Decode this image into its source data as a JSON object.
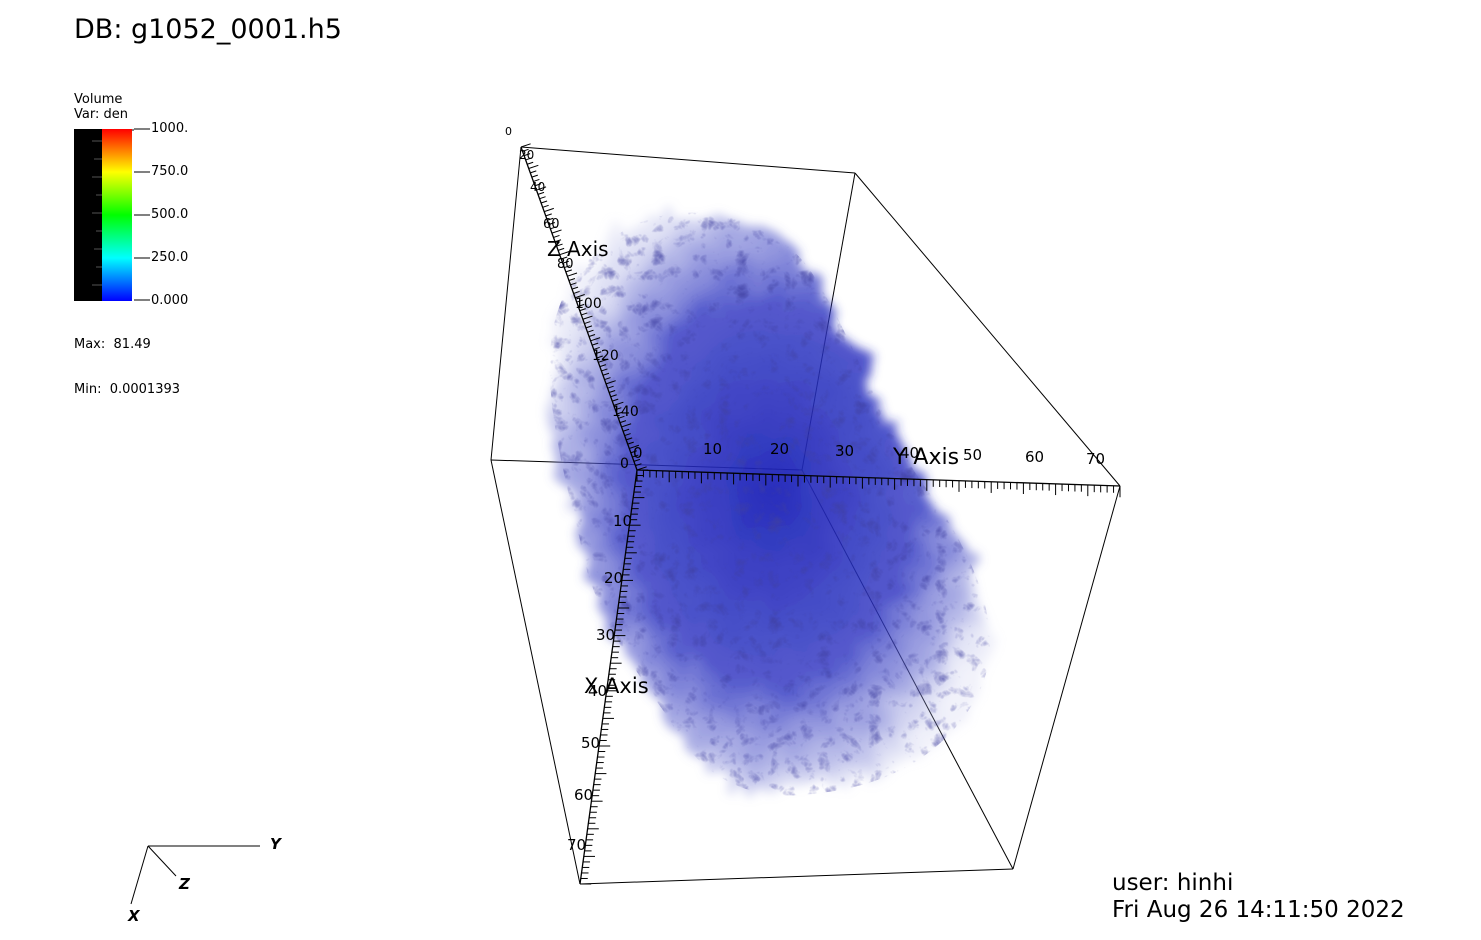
{
  "database": {
    "title": "DB: g1052_0001.h5"
  },
  "legend": {
    "plot_type": "Volume",
    "variable": "Var: den",
    "tick_labels": [
      "1000.",
      "750.0",
      "500.0",
      "250.0",
      "0.000"
    ],
    "max_text": "Max:  81.49",
    "min_text": "Min:  0.0001393",
    "colormap": [
      "#ff0000",
      "#ffff00",
      "#00ff00",
      "#00ffff",
      "#0000ff"
    ],
    "opacity_ramp_color": "#000000"
  },
  "axes": {
    "x": {
      "title": "X Axis",
      "ticks": [
        "0",
        "10",
        "20",
        "30",
        "40",
        "50",
        "60",
        "70"
      ]
    },
    "y": {
      "title": "Y Axis",
      "ticks": [
        "0",
        "10",
        "20",
        "30",
        "40",
        "50",
        "60",
        "70"
      ]
    },
    "z": {
      "title": "Z Axis",
      "ticks": [
        "0",
        "20",
        "40",
        "60",
        "80",
        "100",
        "120",
        "140"
      ]
    },
    "box_origin_label": "0"
  },
  "triad": {
    "x": "X",
    "y": "Y",
    "z": "Z"
  },
  "user": {
    "name": "user: hinhi",
    "datetime": "Fri Aug 26 14:11:50 2022"
  },
  "volume": {
    "color": "#1c22b8"
  }
}
